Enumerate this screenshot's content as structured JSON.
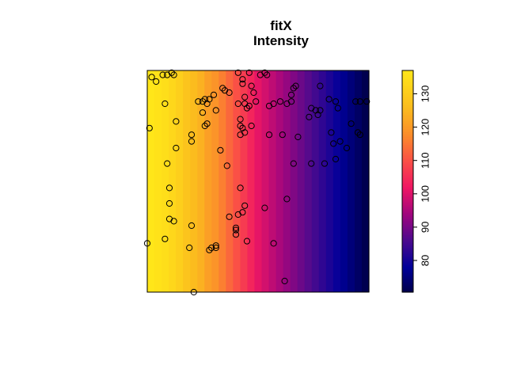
{
  "chart_data": {
    "type": "heatmap",
    "title": "fitX",
    "subtitle": "Intensity",
    "xlabel": "",
    "ylabel": "",
    "x_range": [
      0,
      1
    ],
    "y_range": [
      0,
      1
    ],
    "gradient_direction": "left-to-right",
    "value_range": [
      70.5,
      137
    ],
    "column_values": [
      137,
      136,
      135,
      133,
      131,
      128,
      126,
      124,
      121,
      119,
      116,
      113,
      110,
      107,
      104,
      101,
      99,
      97,
      95,
      93,
      91,
      89,
      87,
      85,
      83,
      81,
      79,
      77,
      75,
      73,
      71
    ],
    "colorbar": {
      "position": "right",
      "range": [
        70.5,
        137
      ],
      "ticks": [
        80,
        90,
        100,
        110,
        120,
        130
      ],
      "tick_labels": [
        "80",
        "90",
        "100",
        "110",
        "120",
        "130"
      ],
      "stops": [
        {
          "value": 70.5,
          "color": "#00004a"
        },
        {
          "value": 78,
          "color": "#000099"
        },
        {
          "value": 86,
          "color": "#4b0a8e"
        },
        {
          "value": 94,
          "color": "#a0067e"
        },
        {
          "value": 102,
          "color": "#f01763"
        },
        {
          "value": 110,
          "color": "#fa5046"
        },
        {
          "value": 118,
          "color": "#fb8e2a"
        },
        {
          "value": 126,
          "color": "#fbbc1e"
        },
        {
          "value": 137,
          "color": "#ffe619"
        }
      ]
    },
    "points": [
      [
        0.02,
        0.97
      ],
      [
        0.04,
        0.95
      ],
      [
        0.07,
        0.98
      ],
      [
        0.09,
        0.98
      ],
      [
        0.11,
        0.99
      ],
      [
        0.12,
        0.98
      ],
      [
        0.01,
        0.74
      ],
      [
        0.08,
        0.85
      ],
      [
        0.13,
        0.77
      ],
      [
        0.13,
        0.65
      ],
      [
        0.09,
        0.58
      ],
      [
        0.1,
        0.47
      ],
      [
        0.1,
        0.4
      ],
      [
        0.1,
        0.33
      ],
      [
        0.12,
        0.32
      ],
      [
        0.08,
        0.24
      ],
      [
        0.0,
        0.22
      ],
      [
        0.2,
        0.71
      ],
      [
        0.2,
        0.68
      ],
      [
        0.2,
        0.3
      ],
      [
        0.19,
        0.2
      ],
      [
        0.21,
        0.0
      ],
      [
        0.23,
        0.86
      ],
      [
        0.25,
        0.86
      ],
      [
        0.26,
        0.87
      ],
      [
        0.27,
        0.85
      ],
      [
        0.28,
        0.87
      ],
      [
        0.26,
        0.75
      ],
      [
        0.27,
        0.76
      ],
      [
        0.25,
        0.81
      ],
      [
        0.31,
        0.82
      ],
      [
        0.3,
        0.89
      ],
      [
        0.34,
        0.92
      ],
      [
        0.35,
        0.91
      ],
      [
        0.37,
        0.9
      ],
      [
        0.33,
        0.64
      ],
      [
        0.36,
        0.57
      ],
      [
        0.37,
        0.34
      ],
      [
        0.4,
        0.28
      ],
      [
        0.4,
        0.26
      ],
      [
        0.28,
        0.19
      ],
      [
        0.29,
        0.2
      ],
      [
        0.31,
        0.21
      ],
      [
        0.31,
        0.2
      ],
      [
        0.41,
        0.99
      ],
      [
        0.46,
        0.99
      ],
      [
        0.51,
        0.98
      ],
      [
        0.53,
        0.99
      ],
      [
        0.54,
        0.98
      ],
      [
        0.43,
        0.96
      ],
      [
        0.41,
        0.85
      ],
      [
        0.44,
        0.88
      ],
      [
        0.44,
        0.85
      ],
      [
        0.43,
        0.94
      ],
      [
        0.47,
        0.93
      ],
      [
        0.48,
        0.9
      ],
      [
        0.49,
        0.86
      ],
      [
        0.45,
        0.83
      ],
      [
        0.46,
        0.84
      ],
      [
        0.42,
        0.78
      ],
      [
        0.42,
        0.75
      ],
      [
        0.43,
        0.74
      ],
      [
        0.44,
        0.72
      ],
      [
        0.42,
        0.71
      ],
      [
        0.47,
        0.75
      ],
      [
        0.42,
        0.47
      ],
      [
        0.44,
        0.39
      ],
      [
        0.43,
        0.36
      ],
      [
        0.41,
        0.35
      ],
      [
        0.4,
        0.29
      ],
      [
        0.45,
        0.23
      ],
      [
        0.53,
        0.38
      ],
      [
        0.57,
        0.22
      ],
      [
        0.62,
        0.05
      ],
      [
        0.55,
        0.84
      ],
      [
        0.57,
        0.85
      ],
      [
        0.6,
        0.86
      ],
      [
        0.63,
        0.85
      ],
      [
        0.65,
        0.86
      ],
      [
        0.65,
        0.89
      ],
      [
        0.66,
        0.92
      ],
      [
        0.67,
        0.93
      ],
      [
        0.55,
        0.71
      ],
      [
        0.61,
        0.71
      ],
      [
        0.66,
        0.58
      ],
      [
        0.68,
        0.7
      ],
      [
        0.63,
        0.42
      ],
      [
        0.74,
        0.83
      ],
      [
        0.76,
        0.82
      ],
      [
        0.77,
        0.8
      ],
      [
        0.78,
        0.82
      ],
      [
        0.78,
        0.93
      ],
      [
        0.85,
        0.86
      ],
      [
        0.86,
        0.83
      ],
      [
        0.94,
        0.86
      ],
      [
        0.96,
        0.86
      ],
      [
        0.99,
        0.86
      ],
      [
        0.83,
        0.72
      ],
      [
        0.84,
        0.67
      ],
      [
        0.85,
        0.6
      ],
      [
        0.87,
        0.68
      ],
      [
        0.9,
        0.65
      ],
      [
        0.92,
        0.76
      ],
      [
        0.95,
        0.72
      ],
      [
        0.96,
        0.71
      ],
      [
        0.74,
        0.58
      ],
      [
        0.8,
        0.58
      ],
      [
        0.73,
        0.79
      ],
      [
        0.82,
        0.87
      ]
    ]
  }
}
